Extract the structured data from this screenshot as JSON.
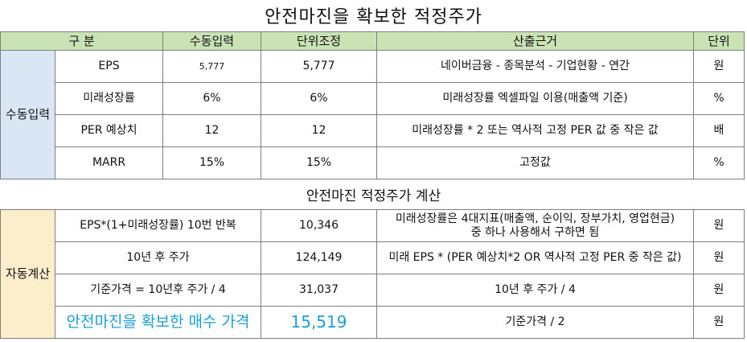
{
  "title": "안전마진을 확보한 적정주가",
  "header": {
    "col_gubun": "구 분",
    "col_manual": "수동입력",
    "col_unit_adj": "단위조정",
    "col_basis": "산출근거",
    "col_unit": "단위"
  },
  "manual": {
    "group_label": "수동입력",
    "rows": [
      {
        "label": "EPS",
        "manual": "5,777",
        "adjusted": "5,777",
        "basis": "네이버금융 - 종목분석 - 기업현황 - 연간",
        "unit": "원"
      },
      {
        "label": "미래성장률",
        "manual": "6%",
        "adjusted": "6%",
        "basis": "미래성장률 엑셀파일 이용(매출액 기준)",
        "unit": "%"
      },
      {
        "label": "PER 예상치",
        "manual": "12",
        "adjusted": "12",
        "basis": "미래성장률 * 2 또는 역사적 고정 PER 값 중 작은 값",
        "unit": "배"
      },
      {
        "label": "MARR",
        "manual": "15%",
        "adjusted": "15%",
        "basis": "고정값",
        "unit": "%"
      }
    ]
  },
  "subtitle": "안전마진 적정주가 계산",
  "auto": {
    "group_label": "자동계산",
    "rows": [
      {
        "label": "EPS*(1+미래성장률) 10번 반복",
        "value": "10,346",
        "basis_line1": "미래성장률은 4대지표(매출액, 순이익, 장부가치, 영업현금)",
        "basis_line2": "중 하나 사용해서 구하면 됨",
        "unit": "원"
      },
      {
        "label": "10년 후 주가",
        "value": "124,149",
        "basis": "미래 EPS * (PER 예상치*2 OR 역사적 고정 PER 중 작은 값)",
        "unit": "원"
      },
      {
        "label": "기준가격 = 10년후 주가 / 4",
        "value": "31,037",
        "basis": "10년 후 주가 / 4",
        "unit": "원"
      },
      {
        "label": "안전마진을 확보한 매수 가격",
        "value": "15,519",
        "basis": "기준가격 / 2",
        "unit": "원"
      }
    ]
  },
  "colors": {
    "header_bg": "#c9e3b4",
    "manual_group_bg": "#d9e7f5",
    "auto_group_bg": "#fdeecb",
    "highlight_text": "#1aa0d8"
  }
}
